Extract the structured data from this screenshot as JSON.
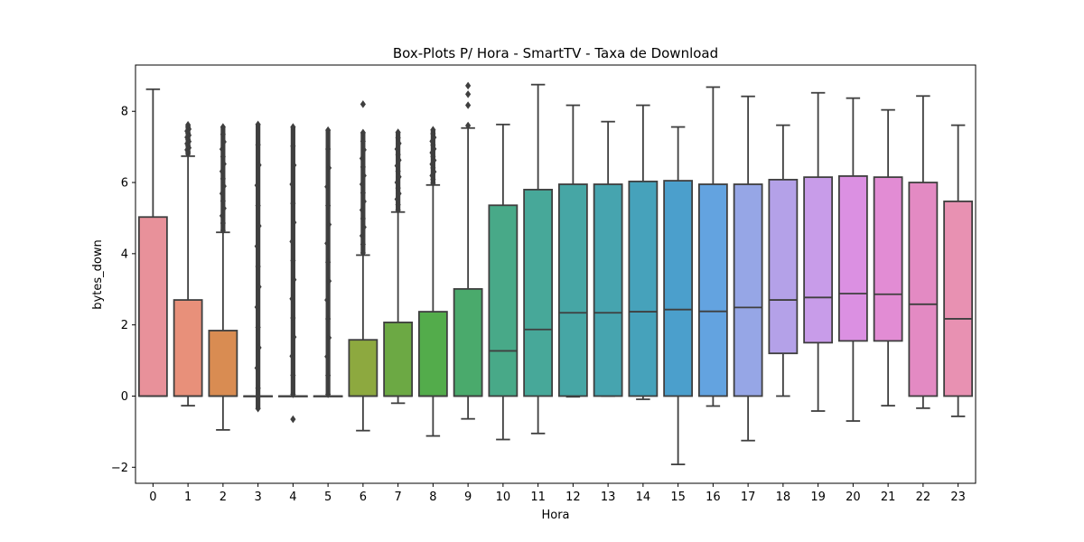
{
  "chart_data": {
    "type": "box",
    "title": "Box-Plots P/ Hora - SmartTV - Taxa de Download",
    "xlabel": "Hora",
    "ylabel": "bytes_down",
    "categories": [
      "0",
      "1",
      "2",
      "3",
      "4",
      "5",
      "6",
      "7",
      "8",
      "9",
      "10",
      "11",
      "12",
      "13",
      "14",
      "15",
      "16",
      "17",
      "18",
      "19",
      "20",
      "21",
      "22",
      "23"
    ],
    "ylim": [
      -2.45,
      9.3
    ],
    "yticks": [
      -2,
      0,
      2,
      4,
      6,
      8
    ],
    "grid": false,
    "colors": [
      "#e8919a",
      "#e8907a",
      "#d98c52",
      "#c19a49",
      "#a8a142",
      "#909d3d",
      "#8da93f",
      "#6ca944",
      "#53ac4b",
      "#4aaa6c",
      "#48a988",
      "#47a899",
      "#46a6a5",
      "#46a4af",
      "#46a2bb",
      "#4b9fcc",
      "#63a3e0",
      "#96a6e6",
      "#b4a1e8",
      "#c89ce9",
      "#db90e2",
      "#e28cd4",
      "#e38ac3",
      "#e891b2"
    ],
    "boxes": [
      {
        "whislo": 0,
        "q1": 0,
        "med": 0,
        "q3": 5.03,
        "whishi": 8.62,
        "fliers": []
      },
      {
        "whislo": -0.27,
        "q1": 0,
        "med": 0,
        "q3": 2.7,
        "whishi": 6.74,
        "fliers_range": [
          6.8,
          7.62
        ]
      },
      {
        "whislo": -0.95,
        "q1": 0,
        "med": 0,
        "q3": 1.84,
        "whishi": 4.6,
        "fliers_range": [
          4.65,
          7.56
        ]
      },
      {
        "whislo": 0,
        "q1": 0,
        "med": 0,
        "q3": 0,
        "whishi": 0,
        "fliers_range": [
          -0.35,
          7.63
        ]
      },
      {
        "whislo": 0,
        "q1": 0,
        "med": 0,
        "q3": 0,
        "whishi": 0,
        "fliers_range": [
          0.05,
          7.56
        ],
        "fliers": [
          -0.65
        ]
      },
      {
        "whislo": 0,
        "q1": 0,
        "med": 0,
        "q3": 0,
        "whishi": 0,
        "fliers_range": [
          0.05,
          7.47
        ]
      },
      {
        "whislo": -0.97,
        "q1": 0,
        "med": 0,
        "q3": 1.58,
        "whishi": 3.96,
        "fliers_range": [
          4.02,
          7.4
        ],
        "fliers": [
          8.2
        ]
      },
      {
        "whislo": -0.2,
        "q1": 0,
        "med": 0,
        "q3": 2.07,
        "whishi": 5.17,
        "fliers_range": [
          5.22,
          7.41
        ]
      },
      {
        "whislo": -1.12,
        "q1": 0,
        "med": 0,
        "q3": 2.37,
        "whishi": 5.93,
        "fliers_range": [
          5.98,
          7.48
        ]
      },
      {
        "whislo": -0.64,
        "q1": 0,
        "med": 0,
        "q3": 3.01,
        "whishi": 7.53,
        "fliers": [
          7.6,
          8.17,
          8.48,
          8.72
        ]
      },
      {
        "whislo": -1.22,
        "q1": 0,
        "med": 1.27,
        "q3": 5.36,
        "whishi": 7.63,
        "fliers": []
      },
      {
        "whislo": -1.05,
        "q1": 0,
        "med": 1.87,
        "q3": 5.8,
        "whishi": 8.75,
        "fliers": []
      },
      {
        "whislo": -0.02,
        "q1": 0,
        "med": 2.34,
        "q3": 5.95,
        "whishi": 8.17,
        "fliers": []
      },
      {
        "whislo": 0,
        "q1": 0,
        "med": 2.34,
        "q3": 5.95,
        "whishi": 7.71,
        "fliers": []
      },
      {
        "whislo": -0.09,
        "q1": 0,
        "med": 2.37,
        "q3": 6.03,
        "whishi": 8.17,
        "fliers": []
      },
      {
        "whislo": -1.92,
        "q1": 0,
        "med": 2.43,
        "q3": 6.05,
        "whishi": 7.56,
        "fliers": []
      },
      {
        "whislo": -0.28,
        "q1": 0,
        "med": 2.38,
        "q3": 5.95,
        "whishi": 8.68,
        "fliers": []
      },
      {
        "whislo": -1.25,
        "q1": 0,
        "med": 2.49,
        "q3": 5.95,
        "whishi": 8.42,
        "fliers": []
      },
      {
        "whislo": 0,
        "q1": 1.2,
        "med": 2.7,
        "q3": 6.08,
        "whishi": 7.61,
        "fliers": []
      },
      {
        "whislo": -0.42,
        "q1": 1.5,
        "med": 2.77,
        "q3": 6.15,
        "whishi": 8.52,
        "fliers": []
      },
      {
        "whislo": -0.7,
        "q1": 1.55,
        "med": 2.88,
        "q3": 6.18,
        "whishi": 8.37,
        "fliers": []
      },
      {
        "whislo": -0.27,
        "q1": 1.55,
        "med": 2.86,
        "q3": 6.15,
        "whishi": 8.04,
        "fliers": []
      },
      {
        "whislo": -0.34,
        "q1": 0,
        "med": 2.58,
        "q3": 6.0,
        "whishi": 8.43,
        "fliers": []
      },
      {
        "whislo": -0.57,
        "q1": 0,
        "med": 2.17,
        "q3": 5.47,
        "whishi": 7.61,
        "fliers": []
      }
    ]
  }
}
